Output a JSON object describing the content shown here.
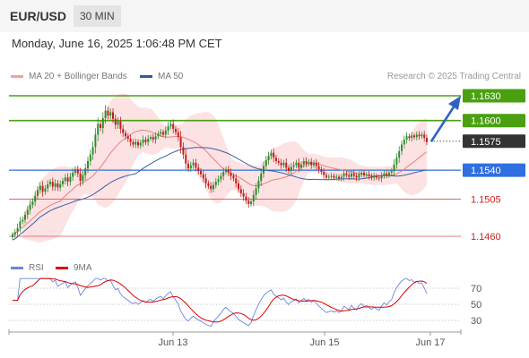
{
  "header": {
    "symbol": "EUR/USD",
    "timeframe": "30 MIN"
  },
  "datetime": "Monday, June 16, 2025 1:06:48 PM CET",
  "legend": {
    "ma20_label": "MA 20 + Bollinger Bands",
    "ma50_label": "MA 50",
    "ma20_color": "#f08080",
    "ma50_color": "#2d5aa0"
  },
  "copyright": "Research © 2025 Trading Central",
  "rsi_legend": {
    "rsi_label": "RSI",
    "ma_label": "9MA",
    "rsi_color": "#4a6fdc",
    "ma_color": "#dd0000"
  },
  "levels": [
    {
      "value": "1.1630",
      "kind": "resistance",
      "color": "#4aa010"
    },
    {
      "value": "1.1600",
      "kind": "resistance",
      "color": "#4aa010"
    },
    {
      "value": "1.1575",
      "kind": "current",
      "color": "#333333"
    },
    {
      "value": "1.1540",
      "kind": "pivot",
      "color": "#2f6fe0"
    },
    {
      "value": "1.1505",
      "kind": "support",
      "color": "#d02020"
    },
    {
      "value": "1.1460",
      "kind": "support",
      "color": "#d02020"
    }
  ],
  "rsi_ticks": [
    "70",
    "50",
    "30"
  ],
  "x_labels": [
    "Jun 13",
    "Jun 15",
    "Jun 17"
  ],
  "chart_data": {
    "type": "candlestick",
    "y_axis_labels": [
      "1.1630",
      "1.1600",
      "1.1575",
      "1.1540",
      "1.1505",
      "1.1460"
    ],
    "x_axis_labels": [
      "Jun 13",
      "Jun 15",
      "Jun 17"
    ],
    "rsi_levels": [
      70,
      50,
      30
    ],
    "closes": [
      1.1462,
      1.1465,
      1.147,
      1.1478,
      1.148,
      1.1486,
      1.1492,
      1.1498,
      1.1502,
      1.1509,
      1.1516,
      1.1521,
      1.1514,
      1.1518,
      1.1523,
      1.1526,
      1.152,
      1.1524,
      1.1519,
      1.1523,
      1.1527,
      1.1531,
      1.1526,
      1.1532,
      1.1537,
      1.1541,
      1.1536,
      1.1527,
      1.1534,
      1.1542,
      1.1551,
      1.1559,
      1.1568,
      1.1583,
      1.1596,
      1.1591,
      1.1603,
      1.1612,
      1.1606,
      1.161,
      1.1602,
      1.1595,
      1.1599,
      1.159,
      1.1585,
      1.1581,
      1.1578,
      1.1574,
      1.1571,
      1.1574,
      1.157,
      1.1573,
      1.1577,
      1.1574,
      1.1578,
      1.158,
      1.1577,
      1.1581,
      1.1584,
      1.1586,
      1.1583,
      1.1588,
      1.1593,
      1.1596,
      1.159,
      1.1586,
      1.158,
      1.1568,
      1.1559,
      1.1548,
      1.1542,
      1.1546,
      1.1549,
      1.1543,
      1.1539,
      1.1535,
      1.153,
      1.1524,
      1.1521,
      1.1517,
      1.1522,
      1.1526,
      1.1529,
      1.1533,
      1.1538,
      1.1541,
      1.1537,
      1.1533,
      1.153,
      1.1524,
      1.1517,
      1.1512,
      1.1508,
      1.1503,
      1.1499,
      1.1502,
      1.151,
      1.1518,
      1.1527,
      1.1536,
      1.1545,
      1.1552,
      1.1557,
      1.1561,
      1.1555,
      1.1551,
      1.1549,
      1.1546,
      1.1549,
      1.1543,
      1.1539,
      1.1544,
      1.1546,
      1.1549,
      1.1543,
      1.1547,
      1.1551,
      1.1548,
      1.155,
      1.1546,
      1.1549,
      1.1545,
      1.1541,
      1.1538,
      1.1534,
      1.1531,
      1.1532,
      1.1533,
      1.1531,
      1.1532,
      1.153,
      1.1532,
      1.1536,
      1.1534,
      1.1532,
      1.1536,
      1.1533,
      1.1531,
      1.1535,
      1.1537,
      1.1534,
      1.1535,
      1.1533,
      1.1531,
      1.1533,
      1.1531,
      1.153,
      1.1533,
      1.1536,
      1.1534,
      1.1537,
      1.1539,
      1.1547,
      1.1555,
      1.1563,
      1.1571,
      1.1577,
      1.1581,
      1.1579,
      1.1582,
      1.158,
      1.1583,
      1.1581,
      1.1583,
      1.1579,
      1.1574
    ]
  }
}
